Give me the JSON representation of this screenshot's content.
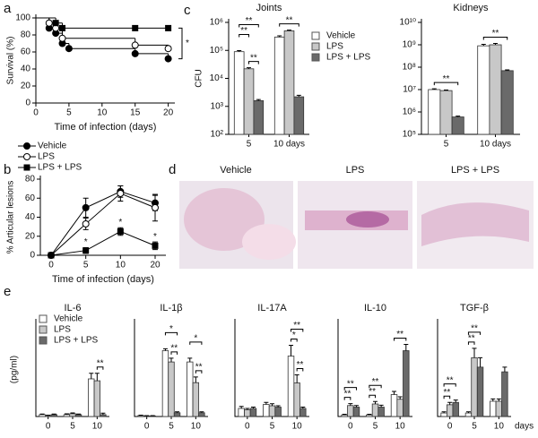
{
  "chart_data": [
    {
      "type": "line",
      "panel": "a",
      "ylabel": "Survival (%)",
      "xlabel": "Time of infection (days)",
      "xlim": [
        0,
        21
      ],
      "xticks": [
        0,
        5,
        10,
        15,
        20
      ],
      "ylim": [
        0,
        100
      ],
      "yticks": [
        0,
        20,
        40,
        60,
        80,
        100
      ],
      "step": true,
      "legend": true,
      "annotations": [
        "*"
      ],
      "series": [
        {
          "name": "Vehicle",
          "marker": "circle-filled",
          "color": "#000000",
          "x": [
            2,
            3,
            4,
            5,
            15,
            20
          ],
          "values": [
            88,
            82,
            70,
            64,
            58,
            52
          ]
        },
        {
          "name": "LPS",
          "marker": "circle-open",
          "color": "#000000",
          "x": [
            2,
            3,
            4,
            15,
            20
          ],
          "values": [
            94,
            88,
            76,
            68,
            64
          ]
        },
        {
          "name": "LPS + LPS",
          "marker": "square",
          "color": "#000000",
          "x": [
            3,
            4,
            15,
            20
          ],
          "values": [
            94,
            88,
            88,
            88
          ]
        }
      ]
    },
    {
      "type": "line",
      "panel": "b",
      "ylabel": "% Articular lesions",
      "xlabel": "Time of infection (days)",
      "categories": [
        "0",
        "5",
        "10",
        "20"
      ],
      "ylim": [
        0,
        80
      ],
      "yticks": [
        0,
        20,
        40,
        60,
        80
      ],
      "annotations": [
        "*",
        "*",
        "*"
      ],
      "series": [
        {
          "marker": "circle-filled",
          "color": "#000000",
          "values": [
            0,
            50,
            67,
            55
          ],
          "errors": [
            0,
            10,
            6,
            8
          ]
        },
        {
          "marker": "circle-open",
          "color": "#000000",
          "values": [
            0,
            33,
            65,
            50
          ],
          "errors": [
            0,
            6,
            8,
            14
          ]
        },
        {
          "marker": "square",
          "color": "#000000",
          "values": [
            0,
            5,
            25,
            10
          ],
          "errors": [
            0,
            3,
            4,
            4
          ]
        }
      ]
    },
    {
      "type": "bar",
      "panel": "c",
      "title": "Joints",
      "ylabel": "CFU",
      "log": true,
      "legend": true,
      "categories": [
        "5",
        "10 days"
      ],
      "ylim": [
        100,
        1000000
      ],
      "yticks": [
        {
          "value": 100,
          "label": "10²"
        },
        {
          "value": 1000,
          "label": "10³"
        },
        {
          "value": 10000,
          "label": "10⁴"
        },
        {
          "value": 100000,
          "label": "10⁵"
        },
        {
          "value": 1000000,
          "label": "10⁶"
        }
      ],
      "annotations": [
        "**",
        "**",
        "**",
        "**"
      ],
      "series": [
        {
          "name": "Vehicle",
          "color": "#ffffff",
          "values": [
            90000,
            300000
          ],
          "errors": [
            8000,
            30000
          ]
        },
        {
          "name": "LPS",
          "color": "#c8c8c8",
          "values": [
            22000,
            500000
          ],
          "errors": [
            2000,
            30000
          ]
        },
        {
          "name": "LPS + LPS",
          "color": "#6a6a6a",
          "values": [
            1600,
            2200
          ],
          "errors": [
            150,
            300
          ]
        }
      ]
    },
    {
      "type": "bar",
      "title": "Kidneys",
      "log": true,
      "categories": [
        "5",
        "10 days"
      ],
      "ylim": [
        100000,
        10000000000
      ],
      "yticks": [
        {
          "value": 100000,
          "label": "10⁵"
        },
        {
          "value": 1000000,
          "label": "10⁶"
        },
        {
          "value": 10000000,
          "label": "10⁷"
        },
        {
          "value": 100000000,
          "label": "10⁸"
        },
        {
          "value": 1000000000,
          "label": "10⁹"
        },
        {
          "value": 10000000000,
          "label": "10¹⁰"
        }
      ],
      "annotations": [
        "**",
        "**"
      ],
      "series": [
        {
          "color": "#ffffff",
          "values": [
            10000000,
            900000000
          ],
          "errors": [
            800000,
            150000000
          ]
        },
        {
          "color": "#c8c8c8",
          "values": [
            9000000,
            1000000000
          ],
          "errors": [
            600000,
            150000000
          ]
        },
        {
          "color": "#6a6a6a",
          "values": [
            600000,
            70000000
          ],
          "errors": [
            50000,
            6000000
          ]
        }
      ]
    },
    {
      "type": "bar",
      "panel": "e",
      "title": "IL-6",
      "ylabel": "(pg/ml)",
      "legend": true,
      "categories": [
        "0",
        "5",
        "10"
      ],
      "ylim": [
        0,
        500
      ],
      "annotations": [
        "**"
      ],
      "series": [
        {
          "name": "Vehicle",
          "color": "#ffffff",
          "values": [
            10,
            10,
            200
          ],
          "errors": [
            3,
            4,
            30
          ]
        },
        {
          "name": "LPS",
          "color": "#c8c8c8",
          "values": [
            5,
            15,
            190
          ],
          "errors": [
            2,
            4,
            40
          ]
        },
        {
          "name": "LPS + LPS",
          "color": "#6a6a6a",
          "values": [
            10,
            10,
            10
          ],
          "errors": [
            3,
            3,
            8
          ]
        }
      ]
    },
    {
      "type": "bar",
      "title": "IL-1β",
      "categories": [
        "0",
        "5",
        "10"
      ],
      "ylim": [
        0,
        500
      ],
      "annotations": [
        "*",
        "**",
        "*",
        "**"
      ],
      "series": [
        {
          "color": "#ffffff",
          "values": [
            5,
            350,
            290
          ],
          "errors": [
            2,
            10,
            20
          ]
        },
        {
          "color": "#c8c8c8",
          "values": [
            3,
            290,
            180
          ],
          "errors": [
            2,
            20,
            30
          ]
        },
        {
          "color": "#6a6a6a",
          "values": [
            3,
            20,
            20
          ],
          "errors": [
            2,
            5,
            5
          ]
        }
      ]
    },
    {
      "type": "bar",
      "title": "IL-17A",
      "categories": [
        "0",
        "5",
        "10"
      ],
      "ylim": [
        0,
        700
      ],
      "annotations": [
        "**",
        "*",
        "**"
      ],
      "series": [
        {
          "color": "#ffffff",
          "values": [
            60,
            90,
            450
          ],
          "errors": [
            15,
            15,
            80
          ]
        },
        {
          "color": "#c8c8c8",
          "values": [
            50,
            80,
            250
          ],
          "errors": [
            10,
            15,
            60
          ]
        },
        {
          "color": "#6a6a6a",
          "values": [
            60,
            70,
            60
          ],
          "errors": [
            10,
            10,
            10
          ]
        }
      ]
    },
    {
      "type": "bar",
      "title": "IL-10",
      "categories": [
        "0",
        "5",
        "10"
      ],
      "ylim": [
        0,
        3000
      ],
      "annotations": [
        "**",
        "**",
        "**",
        "**",
        "**"
      ],
      "series": [
        {
          "color": "#ffffff",
          "values": [
            50,
            50,
            700
          ],
          "errors": [
            20,
            20,
            100
          ]
        },
        {
          "color": "#c8c8c8",
          "values": [
            350,
            400,
            550
          ],
          "errors": [
            60,
            80,
            80
          ]
        },
        {
          "color": "#6a6a6a",
          "values": [
            300,
            300,
            2100
          ],
          "errors": [
            50,
            60,
            200
          ]
        }
      ]
    },
    {
      "type": "bar",
      "title": "TGF-β",
      "categories": [
        "0",
        "5",
        "10"
      ],
      "x_unit": "days",
      "ylim": [
        0,
        800
      ],
      "annotations": [
        "**",
        "**",
        "**",
        "**"
      ],
      "series": [
        {
          "color": "#ffffff",
          "values": [
            30,
            30,
            130
          ],
          "errors": [
            10,
            10,
            20
          ]
        },
        {
          "color": "#c8c8c8",
          "values": [
            100,
            500,
            130
          ],
          "errors": [
            20,
            80,
            20
          ]
        },
        {
          "color": "#6a6a6a",
          "values": [
            120,
            420,
            380
          ],
          "errors": [
            20,
            80,
            40
          ]
        }
      ]
    }
  ],
  "images": {
    "panel": "d",
    "titles": [
      "Vehicle",
      "LPS",
      "LPS + LPS"
    ]
  }
}
